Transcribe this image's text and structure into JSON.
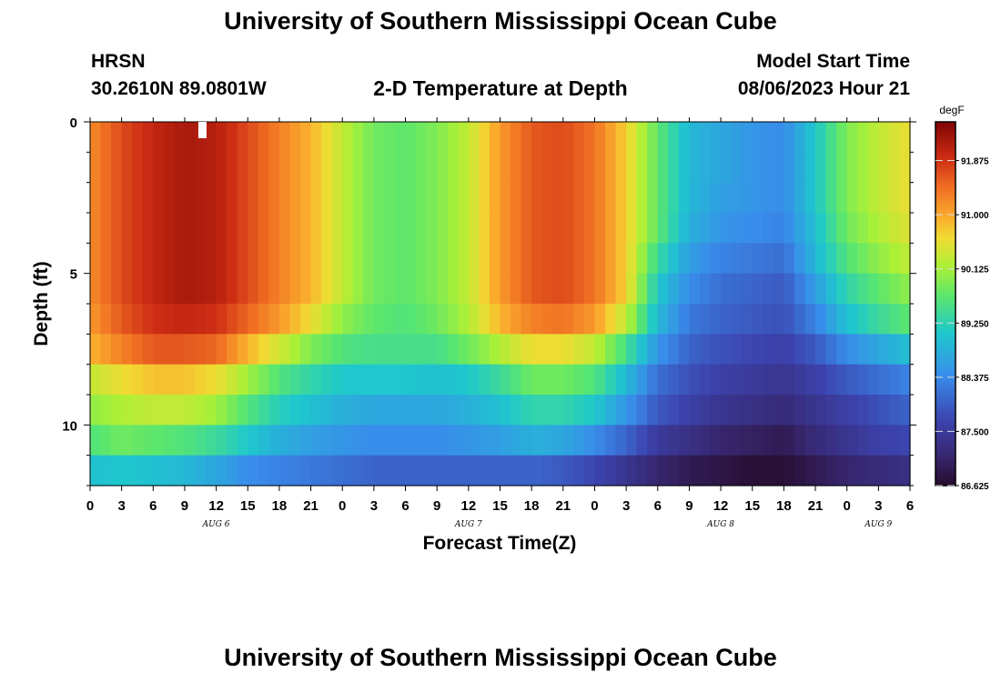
{
  "header": {
    "title": "University of Southern Mississippi Ocean Cube",
    "station": "HRSN",
    "coords": "30.2610N  89.0801W",
    "subtitle": "2-D Temperature at Depth",
    "model_label": "Model Start Time",
    "model_time": "08/06/2023 Hour 21"
  },
  "footer": {
    "title": "University of Southern Mississippi Ocean Cube"
  },
  "chart_data": {
    "type": "heatmap",
    "title": "2-D Temperature at Depth",
    "xlabel": "Forecast Time(Z)",
    "ylabel": "Depth (ft)",
    "colorbar_unit": "degF",
    "colorbar_ticks": [
      "91.875",
      "91.000",
      "90.125",
      "89.250",
      "88.375",
      "87.500",
      "86.625"
    ],
    "clim": [
      86.625,
      92.5
    ],
    "x_ticks": [
      "0",
      "3",
      "6",
      "9",
      "12",
      "15",
      "18",
      "21",
      "0",
      "3",
      "6",
      "9",
      "12",
      "15",
      "18",
      "21",
      "0",
      "3",
      "6",
      "9",
      "12",
      "15",
      "18",
      "21",
      "0",
      "3",
      "6"
    ],
    "day_labels": [
      {
        "label": "AUG 6",
        "hour": 12
      },
      {
        "label": "AUG 7",
        "hour": 36
      },
      {
        "label": "AUG 8",
        "hour": 60
      },
      {
        "label": "AUG 9",
        "hour": 75
      }
    ],
    "x_hours_range": [
      0,
      78
    ],
    "y_ticks": [
      0,
      5,
      10
    ],
    "ylim": [
      0,
      12
    ],
    "depth_levels_ft": [
      0,
      1,
      2,
      3,
      4,
      5,
      6,
      7,
      8,
      9,
      10,
      11
    ],
    "profile_hours": [
      0,
      3,
      6,
      9,
      12,
      15,
      18,
      21,
      24,
      27,
      30,
      33,
      36,
      39,
      42,
      45,
      48,
      51,
      54,
      57,
      60,
      63,
      66,
      69,
      72,
      75,
      78
    ],
    "temperature_profiles": [
      [
        91.2,
        91.2,
        91.2,
        91.2,
        91.2,
        91.2,
        91.1,
        90.9,
        90.3,
        90.0,
        89.6,
        89.0
      ],
      [
        91.7,
        91.7,
        91.7,
        91.7,
        91.7,
        91.7,
        91.6,
        91.3,
        90.6,
        90.2,
        89.8,
        89.1
      ],
      [
        92.0,
        92.0,
        92.0,
        92.0,
        92.0,
        92.0,
        91.9,
        91.6,
        90.8,
        90.3,
        89.7,
        89.0
      ],
      [
        92.2,
        92.2,
        92.2,
        92.2,
        92.2,
        92.2,
        92.0,
        91.6,
        90.8,
        90.3,
        89.6,
        88.9
      ],
      [
        92.1,
        92.1,
        92.1,
        92.1,
        92.1,
        92.1,
        91.9,
        91.5,
        90.6,
        90.1,
        89.4,
        88.7
      ],
      [
        91.7,
        91.7,
        91.7,
        91.7,
        91.7,
        91.7,
        91.5,
        90.9,
        90.1,
        89.6,
        89.1,
        88.4
      ],
      [
        91.3,
        91.3,
        91.3,
        91.3,
        91.3,
        91.3,
        91.1,
        90.4,
        89.6,
        89.2,
        88.8,
        88.3
      ],
      [
        90.9,
        90.9,
        90.9,
        90.9,
        90.9,
        90.9,
        90.6,
        89.9,
        89.3,
        89.0,
        88.6,
        88.2
      ],
      [
        90.3,
        90.3,
        90.3,
        90.3,
        90.3,
        90.3,
        90.0,
        89.6,
        89.1,
        88.8,
        88.5,
        88.1
      ],
      [
        89.8,
        89.8,
        89.8,
        89.8,
        89.8,
        89.8,
        89.7,
        89.5,
        89.1,
        88.7,
        88.4,
        88.0
      ],
      [
        89.7,
        89.7,
        89.7,
        89.7,
        89.7,
        89.7,
        89.6,
        89.5,
        89.1,
        88.7,
        88.4,
        88.0
      ],
      [
        89.9,
        89.9,
        89.9,
        89.9,
        89.9,
        89.9,
        89.8,
        89.5,
        89.0,
        88.7,
        88.4,
        88.0
      ],
      [
        90.3,
        90.3,
        90.3,
        90.3,
        90.3,
        90.3,
        90.2,
        89.8,
        89.1,
        88.8,
        88.5,
        88.0
      ],
      [
        91.1,
        91.1,
        91.1,
        91.1,
        91.1,
        91.1,
        90.9,
        90.2,
        89.4,
        89.0,
        88.6,
        88.0
      ],
      [
        91.6,
        91.6,
        91.6,
        91.6,
        91.6,
        91.6,
        91.3,
        90.6,
        89.8,
        89.3,
        88.8,
        88.0
      ],
      [
        91.7,
        91.7,
        91.7,
        91.7,
        91.7,
        91.7,
        91.4,
        90.6,
        89.8,
        89.3,
        88.7,
        87.9
      ],
      [
        91.4,
        91.4,
        91.4,
        91.4,
        91.4,
        91.4,
        91.1,
        90.3,
        89.6,
        89.1,
        88.4,
        87.7
      ],
      [
        90.7,
        90.7,
        90.7,
        90.7,
        90.7,
        90.7,
        90.3,
        89.5,
        88.9,
        88.5,
        88.0,
        87.4
      ],
      [
        89.7,
        89.7,
        89.7,
        89.7,
        89.4,
        89.1,
        88.9,
        88.5,
        88.1,
        87.9,
        87.5,
        87.1
      ],
      [
        88.9,
        88.9,
        88.9,
        88.8,
        88.6,
        88.4,
        88.2,
        88.0,
        87.8,
        87.6,
        87.3,
        86.9
      ],
      [
        88.7,
        88.7,
        88.6,
        88.5,
        88.3,
        88.1,
        88.0,
        87.8,
        87.6,
        87.4,
        87.1,
        86.8
      ],
      [
        88.5,
        88.5,
        88.5,
        88.4,
        88.2,
        88.0,
        87.9,
        87.7,
        87.5,
        87.3,
        87.0,
        86.7
      ],
      [
        88.4,
        88.4,
        88.4,
        88.3,
        88.1,
        87.9,
        87.8,
        87.6,
        87.4,
        87.2,
        86.9,
        86.7
      ],
      [
        89.1,
        89.1,
        89.1,
        89.0,
        88.9,
        88.6,
        88.3,
        87.9,
        87.6,
        87.4,
        87.2,
        86.9
      ],
      [
        89.9,
        89.9,
        89.9,
        89.8,
        89.6,
        89.3,
        89.0,
        88.4,
        87.9,
        87.6,
        87.4,
        87.1
      ],
      [
        90.3,
        90.3,
        90.3,
        90.2,
        90.0,
        89.7,
        89.4,
        88.7,
        88.1,
        87.8,
        87.6,
        87.2
      ],
      [
        90.6,
        90.6,
        90.6,
        90.5,
        90.3,
        90.0,
        89.7,
        89.0,
        88.3,
        88.0,
        87.7,
        87.3
      ]
    ]
  }
}
